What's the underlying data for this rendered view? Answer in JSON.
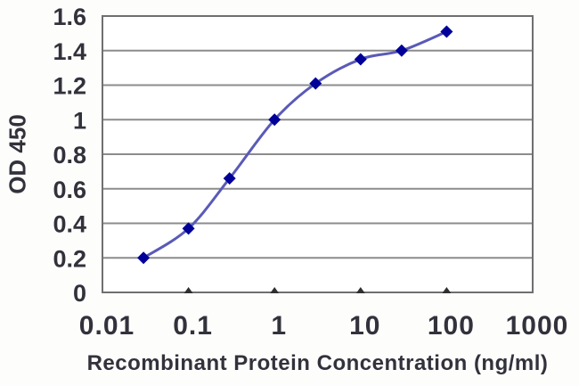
{
  "chart_data": {
    "type": "line",
    "x_scale": "log",
    "x": [
      0.03,
      0.1,
      0.3,
      1,
      3,
      10,
      30,
      100
    ],
    "y": [
      0.2,
      0.37,
      0.66,
      1.0,
      1.21,
      1.35,
      1.4,
      1.51
    ],
    "xlabel": "Recombinant Protein Concentration (ng/ml)",
    "ylabel": "OD 450",
    "xlim": [
      0.01,
      1000
    ],
    "ylim": [
      0,
      1.6
    ],
    "x_ticks": [
      0.01,
      0.1,
      1,
      10,
      100,
      1000
    ],
    "x_tick_labels": [
      "0.01",
      "0.1",
      "1",
      "10",
      "100",
      "1000"
    ],
    "y_ticks": [
      0,
      0.2,
      0.4,
      0.6,
      0.8,
      1,
      1.2,
      1.4,
      1.6
    ],
    "y_tick_labels": [
      "0",
      "0.2",
      "0.4",
      "0.6",
      "0.8",
      "1",
      "1.2",
      "1.4",
      "1.6"
    ],
    "grid": "horizontal",
    "legend": "none",
    "smooth": true,
    "marker": "diamond",
    "colors": {
      "line": "#5a5ab8",
      "marker": "#000099",
      "grid": "#8c8c8c",
      "border": "#6f6f6f",
      "tick": "#2f2f2f",
      "text": "#32323c",
      "background": "#fdfdfc"
    }
  }
}
